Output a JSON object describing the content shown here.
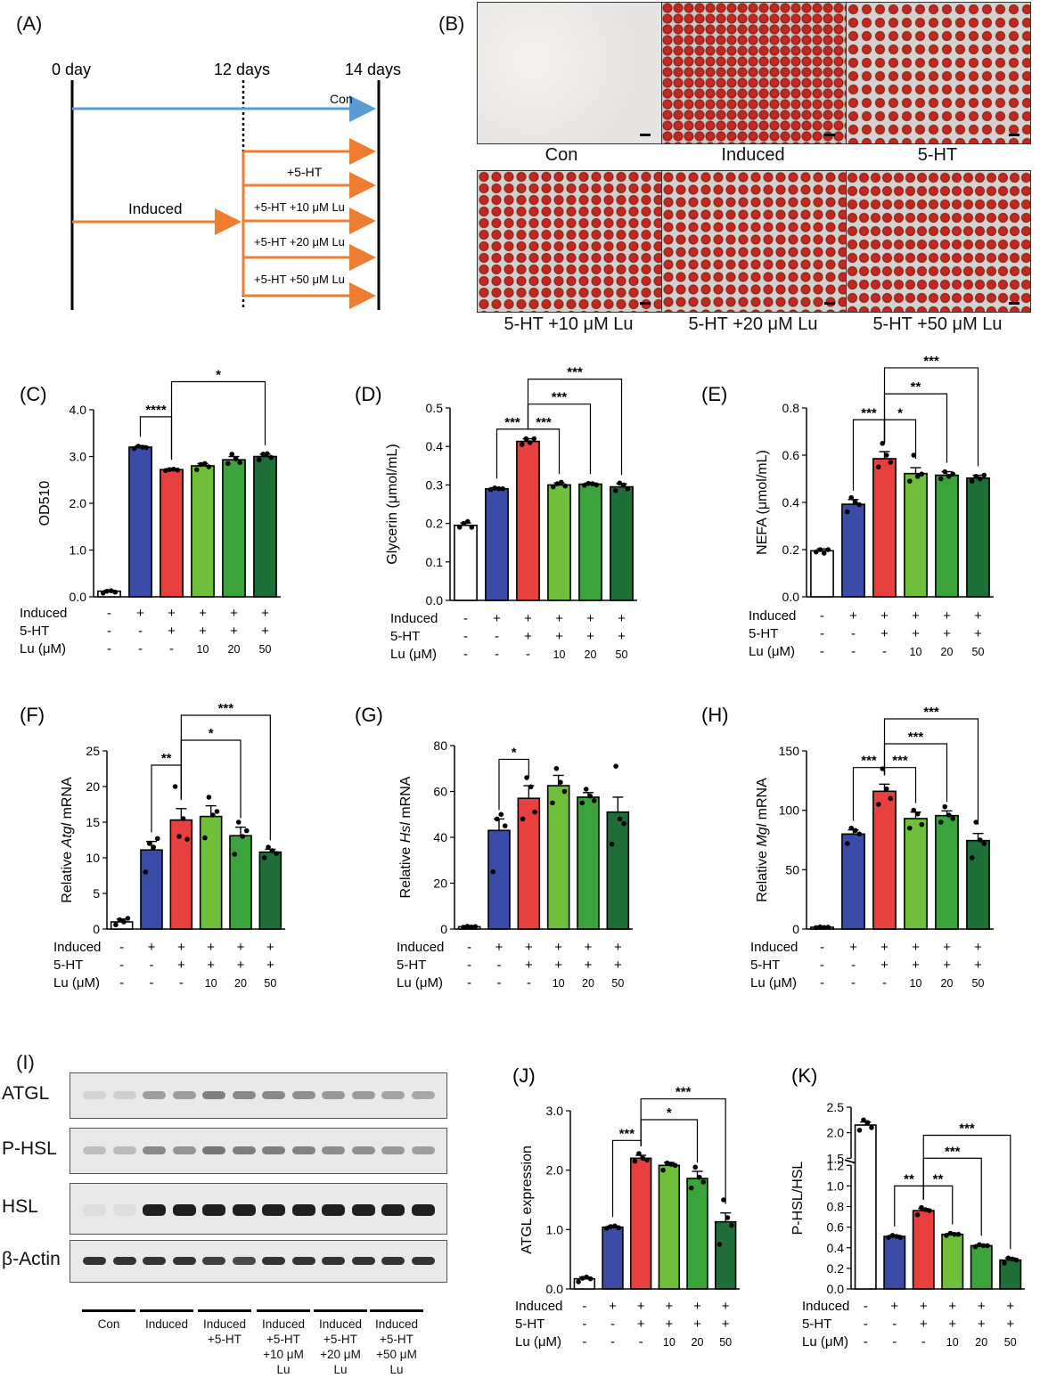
{
  "colors": {
    "con": "#ffffff",
    "induced": "#3b4ba8",
    "ht": "#e8403f",
    "lu10": "#6fbf3a",
    "lu20": "#3aa33c",
    "lu50": "#1f6e38",
    "con_arrow": "#5b9bd5",
    "induced_arrow": "#ed7d31"
  },
  "panel_A": {
    "letter": "(A)",
    "day_labels": [
      "0 day",
      "12 days",
      "14 days"
    ],
    "arrow_labels": [
      "Con",
      "Induced",
      "+5-HT",
      "+5-HT +10 μM Lu",
      "+5-HT +20 μM Lu",
      "+5-HT +50 μM Lu"
    ]
  },
  "panel_B": {
    "letter": "(B)",
    "captions": [
      "Con",
      "Induced",
      "5-HT",
      "5-HT +10 μM Lu",
      "5-HT +20 μM Lu",
      "5-HT +50 μM Lu"
    ]
  },
  "treatment_rows": {
    "labels": [
      "Induced",
      "5-HT",
      "Lu (μM)"
    ],
    "induced": [
      "-",
      "+",
      "+",
      "+",
      "+",
      "+"
    ],
    "ht": [
      "-",
      "-",
      "+",
      "+",
      "+",
      "+"
    ],
    "lu": [
      "-",
      "-",
      "-",
      "10",
      "20",
      "50"
    ]
  },
  "panel_I": {
    "letter": "(I)",
    "bands": [
      "ATGL",
      "P-HSL",
      "HSL",
      "β-Actin"
    ],
    "lanes": [
      "Con",
      "Induced",
      "Induced\n+5-HT",
      "Induced\n+5-HT\n+10 μM\nLu",
      "Induced\n+5-HT\n+20 μM\nLu",
      "Induced\n+5-HT\n+50 μM\nLu"
    ]
  },
  "chart_data": [
    {
      "id": "C",
      "letter": "(C)",
      "type": "bar",
      "ylabel": "OD510",
      "ylabel_italic": "",
      "ylim": [
        0,
        4
      ],
      "yticks": [
        "0.0",
        "1.0",
        "2.0",
        "3.0",
        "4.0"
      ],
      "values": [
        0.12,
        3.2,
        2.72,
        2.8,
        2.93,
        3.0
      ],
      "errors": [
        0.02,
        0.03,
        0.02,
        0.05,
        0.07,
        0.05
      ],
      "points": [
        [
          0.08,
          0.12,
          0.13,
          0.1
        ],
        [
          3.17,
          3.22,
          3.2,
          3.19
        ],
        [
          2.7,
          2.72,
          2.73,
          2.71
        ],
        [
          2.72,
          2.83,
          2.85,
          2.78
        ],
        [
          2.85,
          3.05,
          2.95,
          2.87
        ],
        [
          2.93,
          3.05,
          3.06,
          2.98
        ]
      ],
      "sig": [
        {
          "from": 1,
          "to": 2,
          "label": "****",
          "y": 3.85
        },
        {
          "from": 2,
          "to": 5,
          "label": "*",
          "y": 4.6
        }
      ]
    },
    {
      "id": "D",
      "letter": "(D)",
      "type": "bar",
      "ylabel": "Glycerin (μmol/mL)",
      "ylabel_italic": "",
      "ylim": [
        0,
        0.5
      ],
      "yticks": [
        "0.0",
        "0.1",
        "0.2",
        "0.3",
        "0.4",
        "0.5"
      ],
      "values": [
        0.195,
        0.29,
        0.413,
        0.3,
        0.302,
        0.295
      ],
      "errors": [
        0.006,
        0.003,
        0.007,
        0.005,
        0.003,
        0.008
      ],
      "points": [
        [
          0.19,
          0.2,
          0.205,
          0.19
        ],
        [
          0.288,
          0.292,
          0.29,
          0.29
        ],
        [
          0.405,
          0.42,
          0.41,
          0.42
        ],
        [
          0.295,
          0.303,
          0.307,
          0.297
        ],
        [
          0.299,
          0.304,
          0.303,
          0.3
        ],
        [
          0.285,
          0.305,
          0.3,
          0.29
        ]
      ],
      "sig": [
        {
          "from": 1,
          "to": 2,
          "label": "***",
          "y": 0.445
        },
        {
          "from": 2,
          "to": 3,
          "label": "***",
          "y": 0.445
        },
        {
          "from": 2,
          "to": 4,
          "label": "***",
          "y": 0.51
        },
        {
          "from": 2,
          "to": 5,
          "label": "***",
          "y": 0.575
        }
      ]
    },
    {
      "id": "E",
      "letter": "(E)",
      "type": "bar",
      "ylabel": "NEFA (μmol/mL)",
      "ylabel_italic": "",
      "ylim": [
        0,
        0.8
      ],
      "yticks": [
        "0.0",
        "0.2",
        "0.4",
        "0.6",
        "0.8"
      ],
      "values": [
        0.195,
        0.392,
        0.585,
        0.522,
        0.515,
        0.503
      ],
      "errors": [
        0.008,
        0.02,
        0.03,
        0.025,
        0.015,
        0.012
      ],
      "points": [
        [
          0.19,
          0.2,
          0.185,
          0.2
        ],
        [
          0.36,
          0.42,
          0.4,
          0.39
        ],
        [
          0.55,
          0.65,
          0.6,
          0.57
        ],
        [
          0.49,
          0.6,
          0.51,
          0.52
        ],
        [
          0.5,
          0.53,
          0.51,
          0.52
        ],
        [
          0.49,
          0.51,
          0.5,
          0.515
        ]
      ],
      "sig": [
        {
          "from": 1,
          "to": 2,
          "label": "***",
          "y": 0.75
        },
        {
          "from": 2,
          "to": 3,
          "label": "*",
          "y": 0.75
        },
        {
          "from": 2,
          "to": 4,
          "label": "**",
          "y": 0.86
        },
        {
          "from": 2,
          "to": 5,
          "label": "***",
          "y": 0.97
        }
      ]
    },
    {
      "id": "F",
      "letter": "(F)",
      "type": "bar",
      "ylabel": " mRNA",
      "ylabel_italic": "Atgl",
      "ylim": [
        0,
        25
      ],
      "yticks": [
        "0",
        "5",
        "10",
        "15",
        "20",
        "25"
      ],
      "values": [
        1.0,
        11.1,
        15.3,
        15.8,
        13.1,
        10.8
      ],
      "errors": [
        0.4,
        1.2,
        1.6,
        1.5,
        1.2,
        0.4
      ],
      "points": [
        [
          0.6,
          1.3,
          1.0,
          1.5
        ],
        [
          8.0,
          12.0,
          11.5,
          12.7
        ],
        [
          20.0,
          13.0,
          15.5,
          12.6
        ],
        [
          12.8,
          18.5,
          16.0,
          16.5
        ],
        [
          10.5,
          15.0,
          13.0,
          13.8
        ],
        [
          10.0,
          11.5,
          11.0,
          10.6
        ]
      ],
      "sig": [
        {
          "from": 1,
          "to": 2,
          "label": "**",
          "y": 23
        },
        {
          "from": 2,
          "to": 4,
          "label": "*",
          "y": 26.5
        },
        {
          "from": 2,
          "to": 5,
          "label": "***",
          "y": 30
        }
      ]
    },
    {
      "id": "G",
      "letter": "(G)",
      "type": "bar",
      "ylabel": " mRNA",
      "ylabel_italic": "Hsl",
      "ylim": [
        0,
        80
      ],
      "yticks": [
        "0",
        "20",
        "40",
        "60",
        "80"
      ],
      "values": [
        1.0,
        43.0,
        57.0,
        62.5,
        57.5,
        51.0
      ],
      "errors": [
        0.3,
        5.0,
        5.5,
        4.5,
        2.0,
        6.5
      ],
      "points": [
        [
          0.8,
          1.2,
          0.9,
          1.1
        ],
        [
          25,
          48,
          50,
          45
        ],
        [
          48,
          66,
          62,
          51
        ],
        [
          55,
          70,
          64,
          60
        ],
        [
          55,
          61,
          58,
          56
        ],
        [
          37,
          71,
          48,
          46
        ]
      ],
      "sig": [
        {
          "from": 1,
          "to": 2,
          "label": "*",
          "y": 74
        }
      ]
    },
    {
      "id": "H",
      "letter": "(H)",
      "type": "bar",
      "ylabel": " mRNA",
      "ylabel_italic": "Mgl",
      "ylim": [
        0,
        150
      ],
      "yticks": [
        "0",
        "50",
        "100",
        "150"
      ],
      "values": [
        1.5,
        80.0,
        116.0,
        93.0,
        95.5,
        74.5
      ],
      "errors": [
        0.3,
        3.5,
        6.0,
        5.5,
        4.0,
        6.0
      ],
      "points": [
        [
          1.2,
          1.8,
          1.4,
          1.6
        ],
        [
          72,
          85,
          83,
          80
        ],
        [
          105,
          135,
          118,
          110
        ],
        [
          85,
          100,
          97,
          88
        ],
        [
          90,
          103,
          96,
          93
        ],
        [
          60,
          90,
          75,
          72
        ]
      ],
      "sig": [
        {
          "from": 1,
          "to": 2,
          "label": "***",
          "y": 136
        },
        {
          "from": 2,
          "to": 3,
          "label": "***",
          "y": 136
        },
        {
          "from": 2,
          "to": 4,
          "label": "***",
          "y": 156
        },
        {
          "from": 2,
          "to": 5,
          "label": "***",
          "y": 177
        }
      ]
    },
    {
      "id": "J",
      "letter": "(J)",
      "type": "bar",
      "ylabel": "ATGL expression",
      "ylabel_italic": "",
      "ylim": [
        0,
        3
      ],
      "yticks": [
        "0.0",
        "1.0",
        "2.0",
        "3.0"
      ],
      "values": [
        0.17,
        1.04,
        2.2,
        2.08,
        1.86,
        1.13
      ],
      "errors": [
        0.03,
        0.02,
        0.05,
        0.05,
        0.12,
        0.15
      ],
      "points": [
        [
          0.12,
          0.18,
          0.2,
          0.17
        ],
        [
          1.02,
          1.05,
          1.06,
          1.03
        ],
        [
          2.15,
          2.28,
          2.2,
          2.17
        ],
        [
          2.0,
          2.12,
          2.1,
          2.08
        ],
        [
          1.7,
          2.05,
          1.88,
          1.8
        ],
        [
          0.75,
          1.5,
          1.2,
          1.07
        ]
      ],
      "sig": [
        {
          "from": 1,
          "to": 2,
          "label": "***",
          "y": 2.5
        },
        {
          "from": 2,
          "to": 4,
          "label": "*",
          "y": 2.85
        },
        {
          "from": 2,
          "to": 5,
          "label": "***",
          "y": 3.2
        }
      ]
    },
    {
      "id": "K",
      "letter": "(K)",
      "type": "bar",
      "ylabel": "P-HSL/HSL",
      "ylabel_italic": "",
      "ylim": [
        0,
        2.5
      ],
      "axis_break": [
        1.2,
        1.5
      ],
      "yticks": [
        "0.0",
        "0.2",
        "0.4",
        "0.6",
        "0.8",
        "1.0",
        "1.2",
        "1.5",
        "2.0",
        "2.5"
      ],
      "values": [
        2.15,
        0.51,
        0.76,
        0.53,
        0.42,
        0.28
      ],
      "errors": [
        0.06,
        0.01,
        0.02,
        0.01,
        0.01,
        0.02
      ],
      "points": [
        [
          2.05,
          2.25,
          2.2,
          2.1
        ],
        [
          0.5,
          0.52,
          0.51,
          0.5
        ],
        [
          0.72,
          0.79,
          0.77,
          0.76
        ],
        [
          0.52,
          0.54,
          0.53,
          0.53
        ],
        [
          0.41,
          0.43,
          0.42,
          0.42
        ],
        [
          0.25,
          0.3,
          0.29,
          0.28
        ]
      ],
      "sig": [
        {
          "from": 1,
          "to": 2,
          "label": "**",
          "y": 1.0
        },
        {
          "from": 2,
          "to": 3,
          "label": "**",
          "y": 1.0
        },
        {
          "from": 2,
          "to": 4,
          "label": "***",
          "y": 1.5
        },
        {
          "from": 2,
          "to": 5,
          "label": "***",
          "y": 1.95
        }
      ]
    }
  ]
}
